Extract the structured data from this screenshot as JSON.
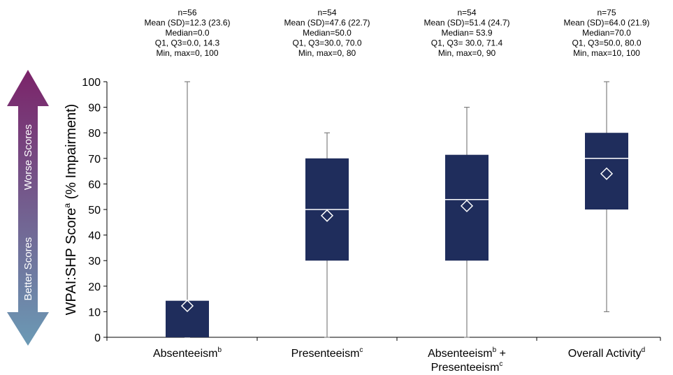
{
  "chart_data": {
    "type": "box",
    "title": "",
    "ylabel": "WPAI:SHP Score",
    "ylabel_sup": "a",
    "ylabel_suffix": " (% Impairment)",
    "ylim": [
      0,
      100
    ],
    "yticks": [
      0,
      10,
      20,
      30,
      40,
      50,
      60,
      70,
      80,
      90,
      100
    ],
    "grid": false,
    "box_color": "#1f2d5c",
    "scale_arrow": {
      "worse_label": "Worse Scores",
      "better_label": "Better Scores",
      "top_color": "#7b2369",
      "bottom_color": "#6b9ab5"
    },
    "categories": [
      {
        "label_lines": [
          {
            "text": "Absenteeism",
            "sup": "b"
          }
        ],
        "stats_text": [
          "n=56",
          "Mean (SD)=12.3 (23.6)",
          "Median=0.0",
          "Q1, Q3=0.0, 14.3",
          "Min, max=0, 100"
        ],
        "n": 56,
        "mean": 12.3,
        "sd": 23.6,
        "median": 0.0,
        "q1": 0.0,
        "q3": 14.3,
        "min": 0,
        "max": 100
      },
      {
        "label_lines": [
          {
            "text": "Presenteeism",
            "sup": "c"
          }
        ],
        "stats_text": [
          "n=54",
          "Mean (SD)=47.6 (22.7)",
          "Median=50.0",
          "Q1, Q3=30.0, 70.0",
          "Min, max=0, 80"
        ],
        "n": 54,
        "mean": 47.6,
        "sd": 22.7,
        "median": 50.0,
        "q1": 30.0,
        "q3": 70.0,
        "min": 0,
        "max": 80
      },
      {
        "label_lines": [
          {
            "text": "Absenteeism",
            "sup": "b",
            "after": " +"
          },
          {
            "text": "Presenteeism",
            "sup": "c"
          }
        ],
        "stats_text": [
          "n=54",
          "Mean (SD)=51.4 (24.7)",
          "Median= 53.9",
          "Q1, Q3= 30.0, 71.4",
          "Min, max=0, 90"
        ],
        "n": 54,
        "mean": 51.4,
        "sd": 24.7,
        "median": 53.9,
        "q1": 30.0,
        "q3": 71.4,
        "min": 0,
        "max": 90
      },
      {
        "label_lines": [
          {
            "text": "Overall Activity",
            "sup": "d"
          }
        ],
        "stats_text": [
          "n=75",
          "Mean (SD)=64.0 (21.9)",
          "Median=70.0",
          "Q1, Q3=50.0, 80.0",
          "Min, max=10, 100"
        ],
        "n": 75,
        "mean": 64.0,
        "sd": 21.9,
        "median": 70.0,
        "q1": 50.0,
        "q3": 80.0,
        "min": 10,
        "max": 100
      }
    ]
  }
}
